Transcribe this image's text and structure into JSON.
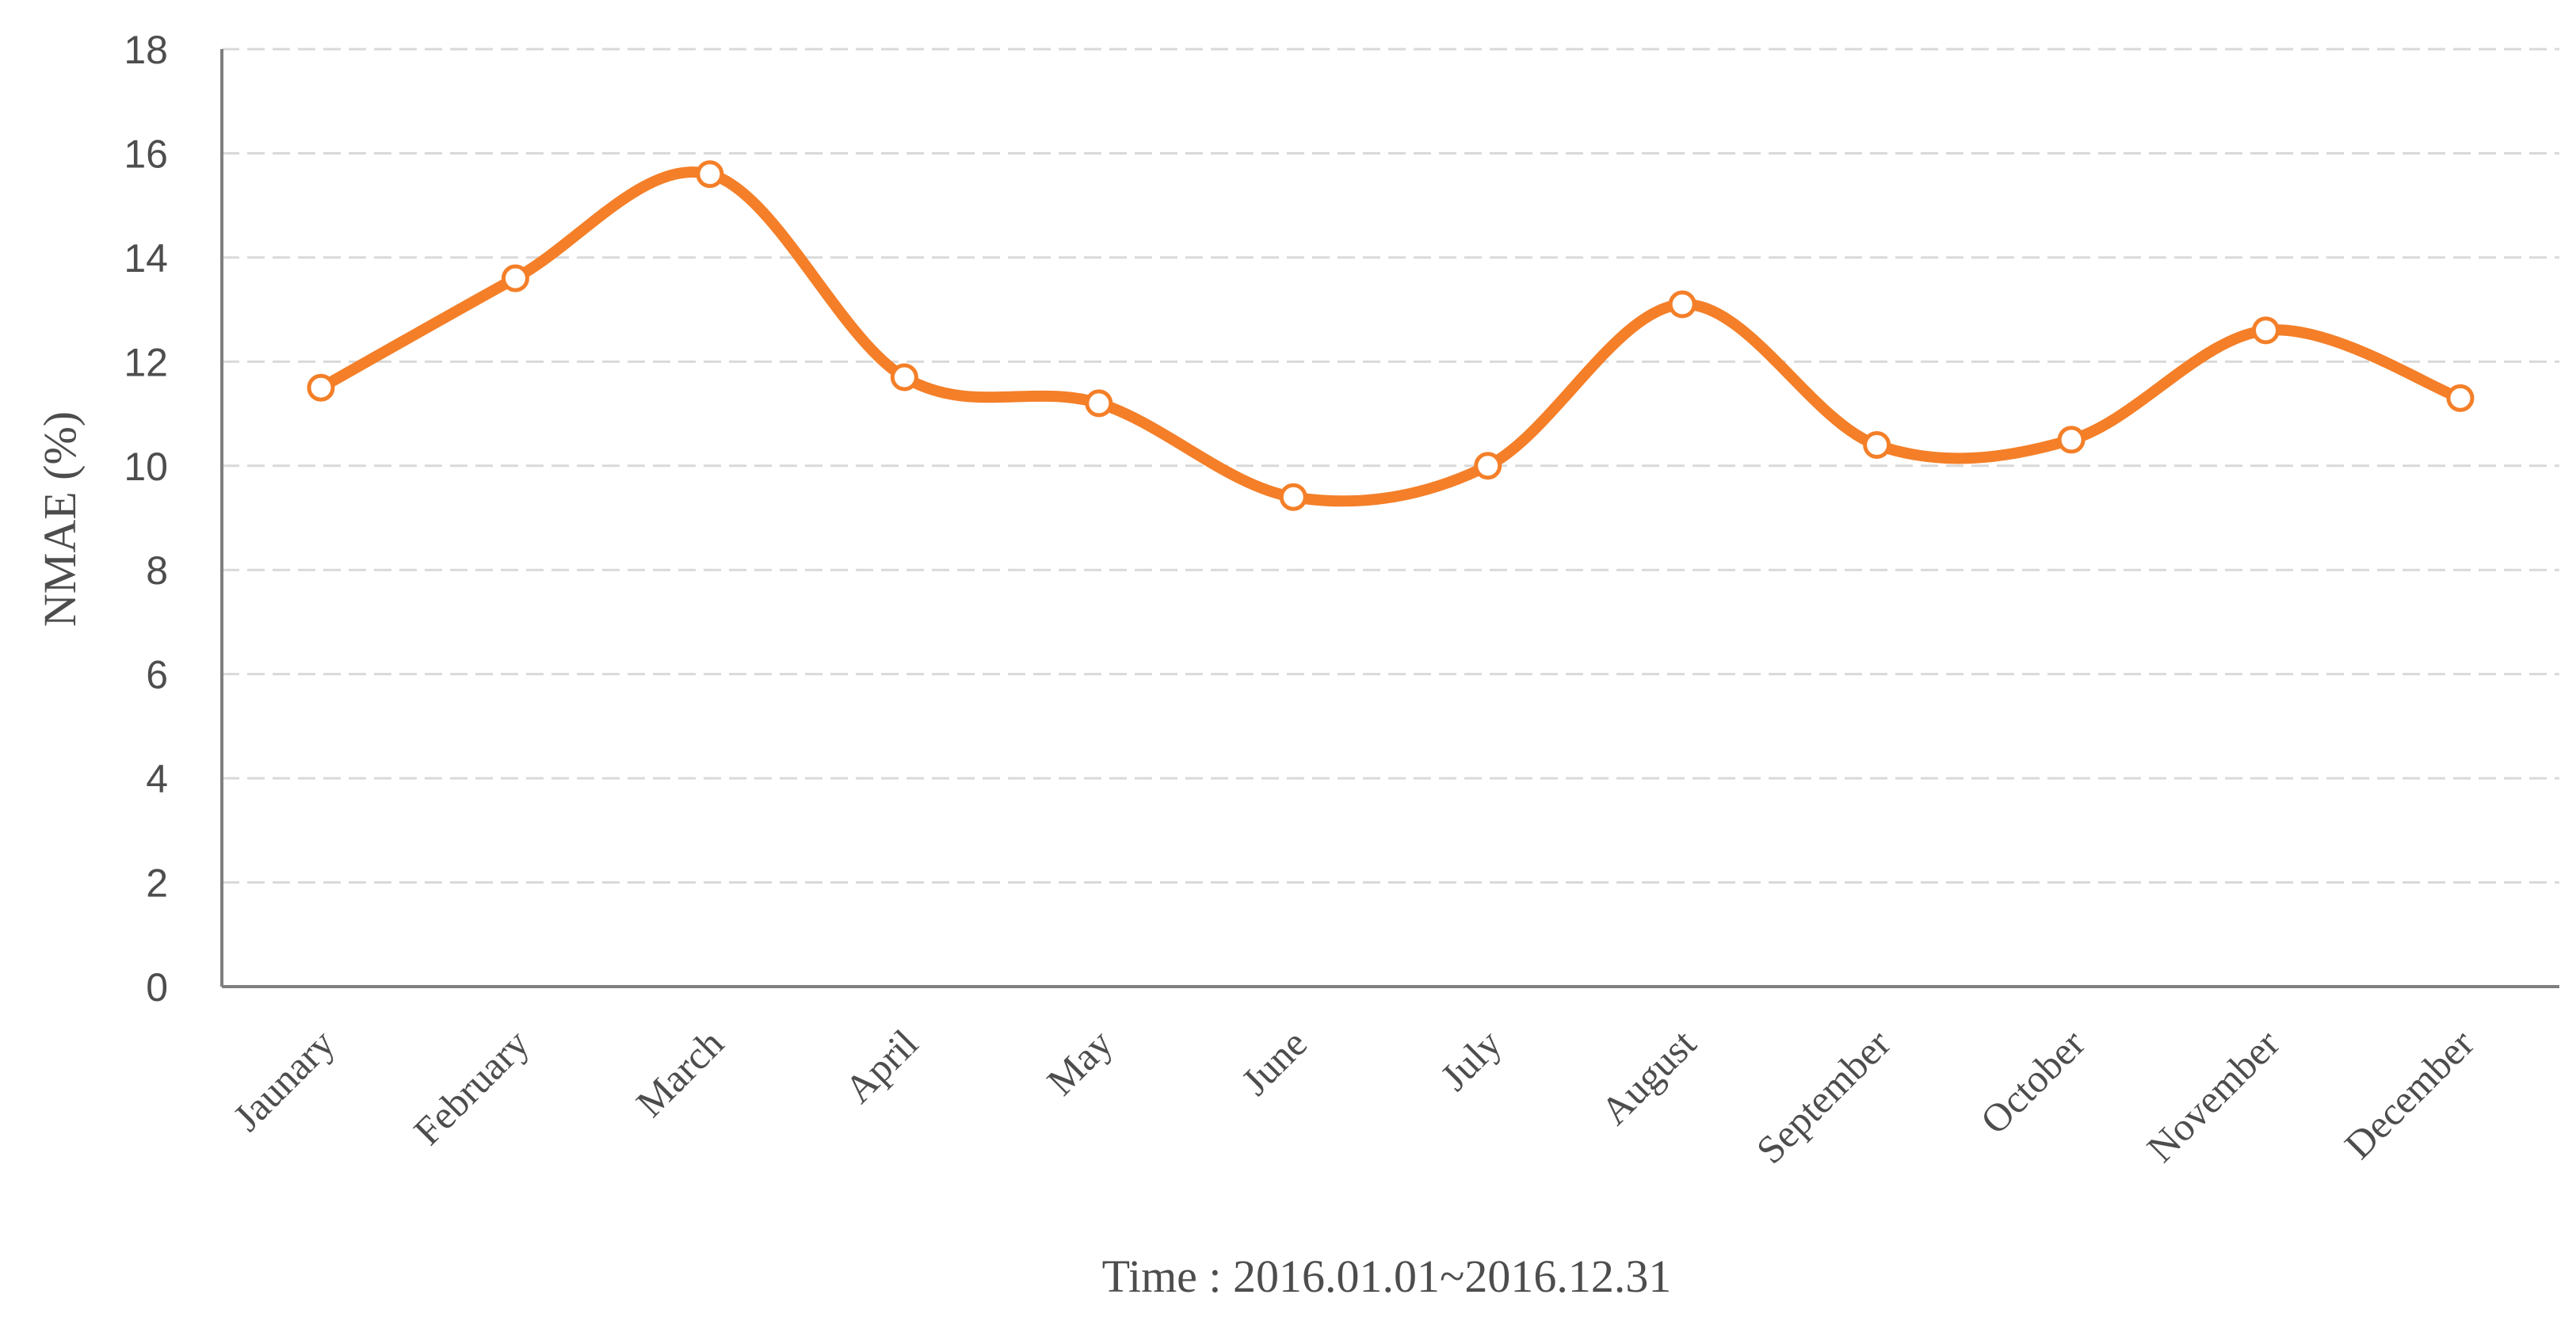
{
  "chart_data": {
    "type": "line",
    "title": "",
    "xlabel": "Time : 2016.01.01~2016.12.31",
    "ylabel": "NMAE (%)",
    "ylim": [
      0,
      18
    ],
    "yticks": [
      0,
      2,
      4,
      6,
      8,
      10,
      12,
      14,
      16,
      18
    ],
    "grid": true,
    "legend": "none",
    "smooth": true,
    "categories": [
      "Jaunary",
      "February",
      "March",
      "April",
      "May",
      "June",
      "July",
      "August",
      "September",
      "October",
      "November",
      "December"
    ],
    "series": [
      {
        "values": [
          11.5,
          13.6,
          15.6,
          11.7,
          11.2,
          9.4,
          10.0,
          13.1,
          10.4,
          10.5,
          12.6,
          11.3
        ],
        "color": "#F47F28",
        "marker_fill": "#ffffff"
      }
    ]
  }
}
